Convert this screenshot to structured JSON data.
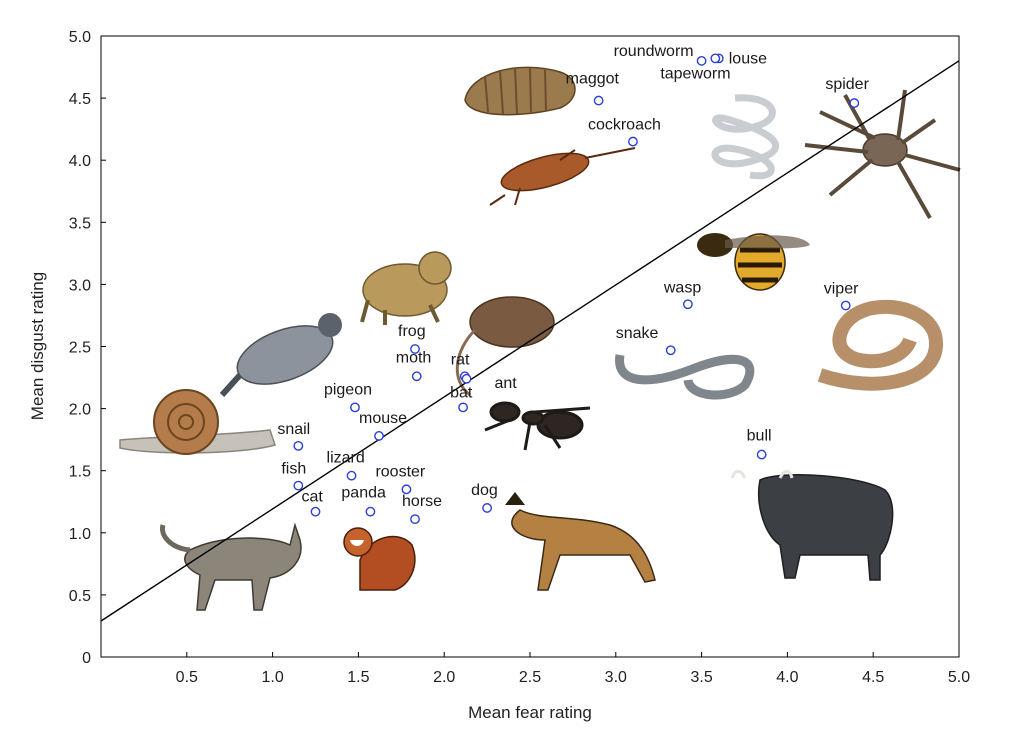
{
  "chart_data": {
    "type": "scatter",
    "title": "",
    "xlabel": "Mean fear rating",
    "ylabel": "Mean disgust rating",
    "xlim": [
      0,
      5
    ],
    "ylim": [
      0,
      5
    ],
    "x_ticks": [
      "0.5",
      "1.0",
      "1.5",
      "2.0",
      "2.5",
      "3.0",
      "3.5",
      "4.0",
      "4.5",
      "5.0"
    ],
    "y_ticks": [
      "0",
      "0.5",
      "1.0",
      "1.5",
      "2.0",
      "2.5",
      "3.0",
      "3.5",
      "4.0",
      "4.5",
      "5.0"
    ],
    "grid": false,
    "marker_color": "#2a3fd4",
    "reference_line": {
      "x": [
        0,
        5
      ],
      "y": [
        0.29,
        4.8
      ]
    },
    "points": [
      {
        "label": "roundworm",
        "x": 3.5,
        "y": 4.8
      },
      {
        "label": "louse",
        "x": 3.6,
        "y": 4.82
      },
      {
        "label": "tapeworm",
        "x": 3.58,
        "y": 4.82
      },
      {
        "label": "maggot",
        "x": 2.9,
        "y": 4.48
      },
      {
        "label": "spider",
        "x": 4.39,
        "y": 4.46
      },
      {
        "label": "cockroach",
        "x": 3.1,
        "y": 4.15
      },
      {
        "label": "wasp",
        "x": 3.42,
        "y": 2.84
      },
      {
        "label": "viper",
        "x": 4.34,
        "y": 2.83
      },
      {
        "label": "snake",
        "x": 3.32,
        "y": 2.47
      },
      {
        "label": "frog",
        "x": 1.83,
        "y": 2.48
      },
      {
        "label": "moth",
        "x": 1.84,
        "y": 2.26
      },
      {
        "label": "rat",
        "x": 2.12,
        "y": 2.26
      },
      {
        "label": "bat",
        "x": 2.11,
        "y": 2.01
      },
      {
        "label": "ant",
        "x": 2.13,
        "y": 2.24
      },
      {
        "label": "pigeon",
        "x": 1.48,
        "y": 2.01
      },
      {
        "label": "mouse",
        "x": 1.62,
        "y": 1.78
      },
      {
        "label": "snail",
        "x": 1.15,
        "y": 1.7
      },
      {
        "label": "lizard",
        "x": 1.46,
        "y": 1.46
      },
      {
        "label": "fish",
        "x": 1.15,
        "y": 1.38
      },
      {
        "label": "rooster",
        "x": 1.78,
        "y": 1.35
      },
      {
        "label": "cat",
        "x": 1.25,
        "y": 1.17
      },
      {
        "label": "panda",
        "x": 1.57,
        "y": 1.17
      },
      {
        "label": "horse",
        "x": 1.83,
        "y": 1.11
      },
      {
        "label": "dog",
        "x": 2.25,
        "y": 1.2
      },
      {
        "label": "bull",
        "x": 3.85,
        "y": 1.63
      }
    ]
  }
}
